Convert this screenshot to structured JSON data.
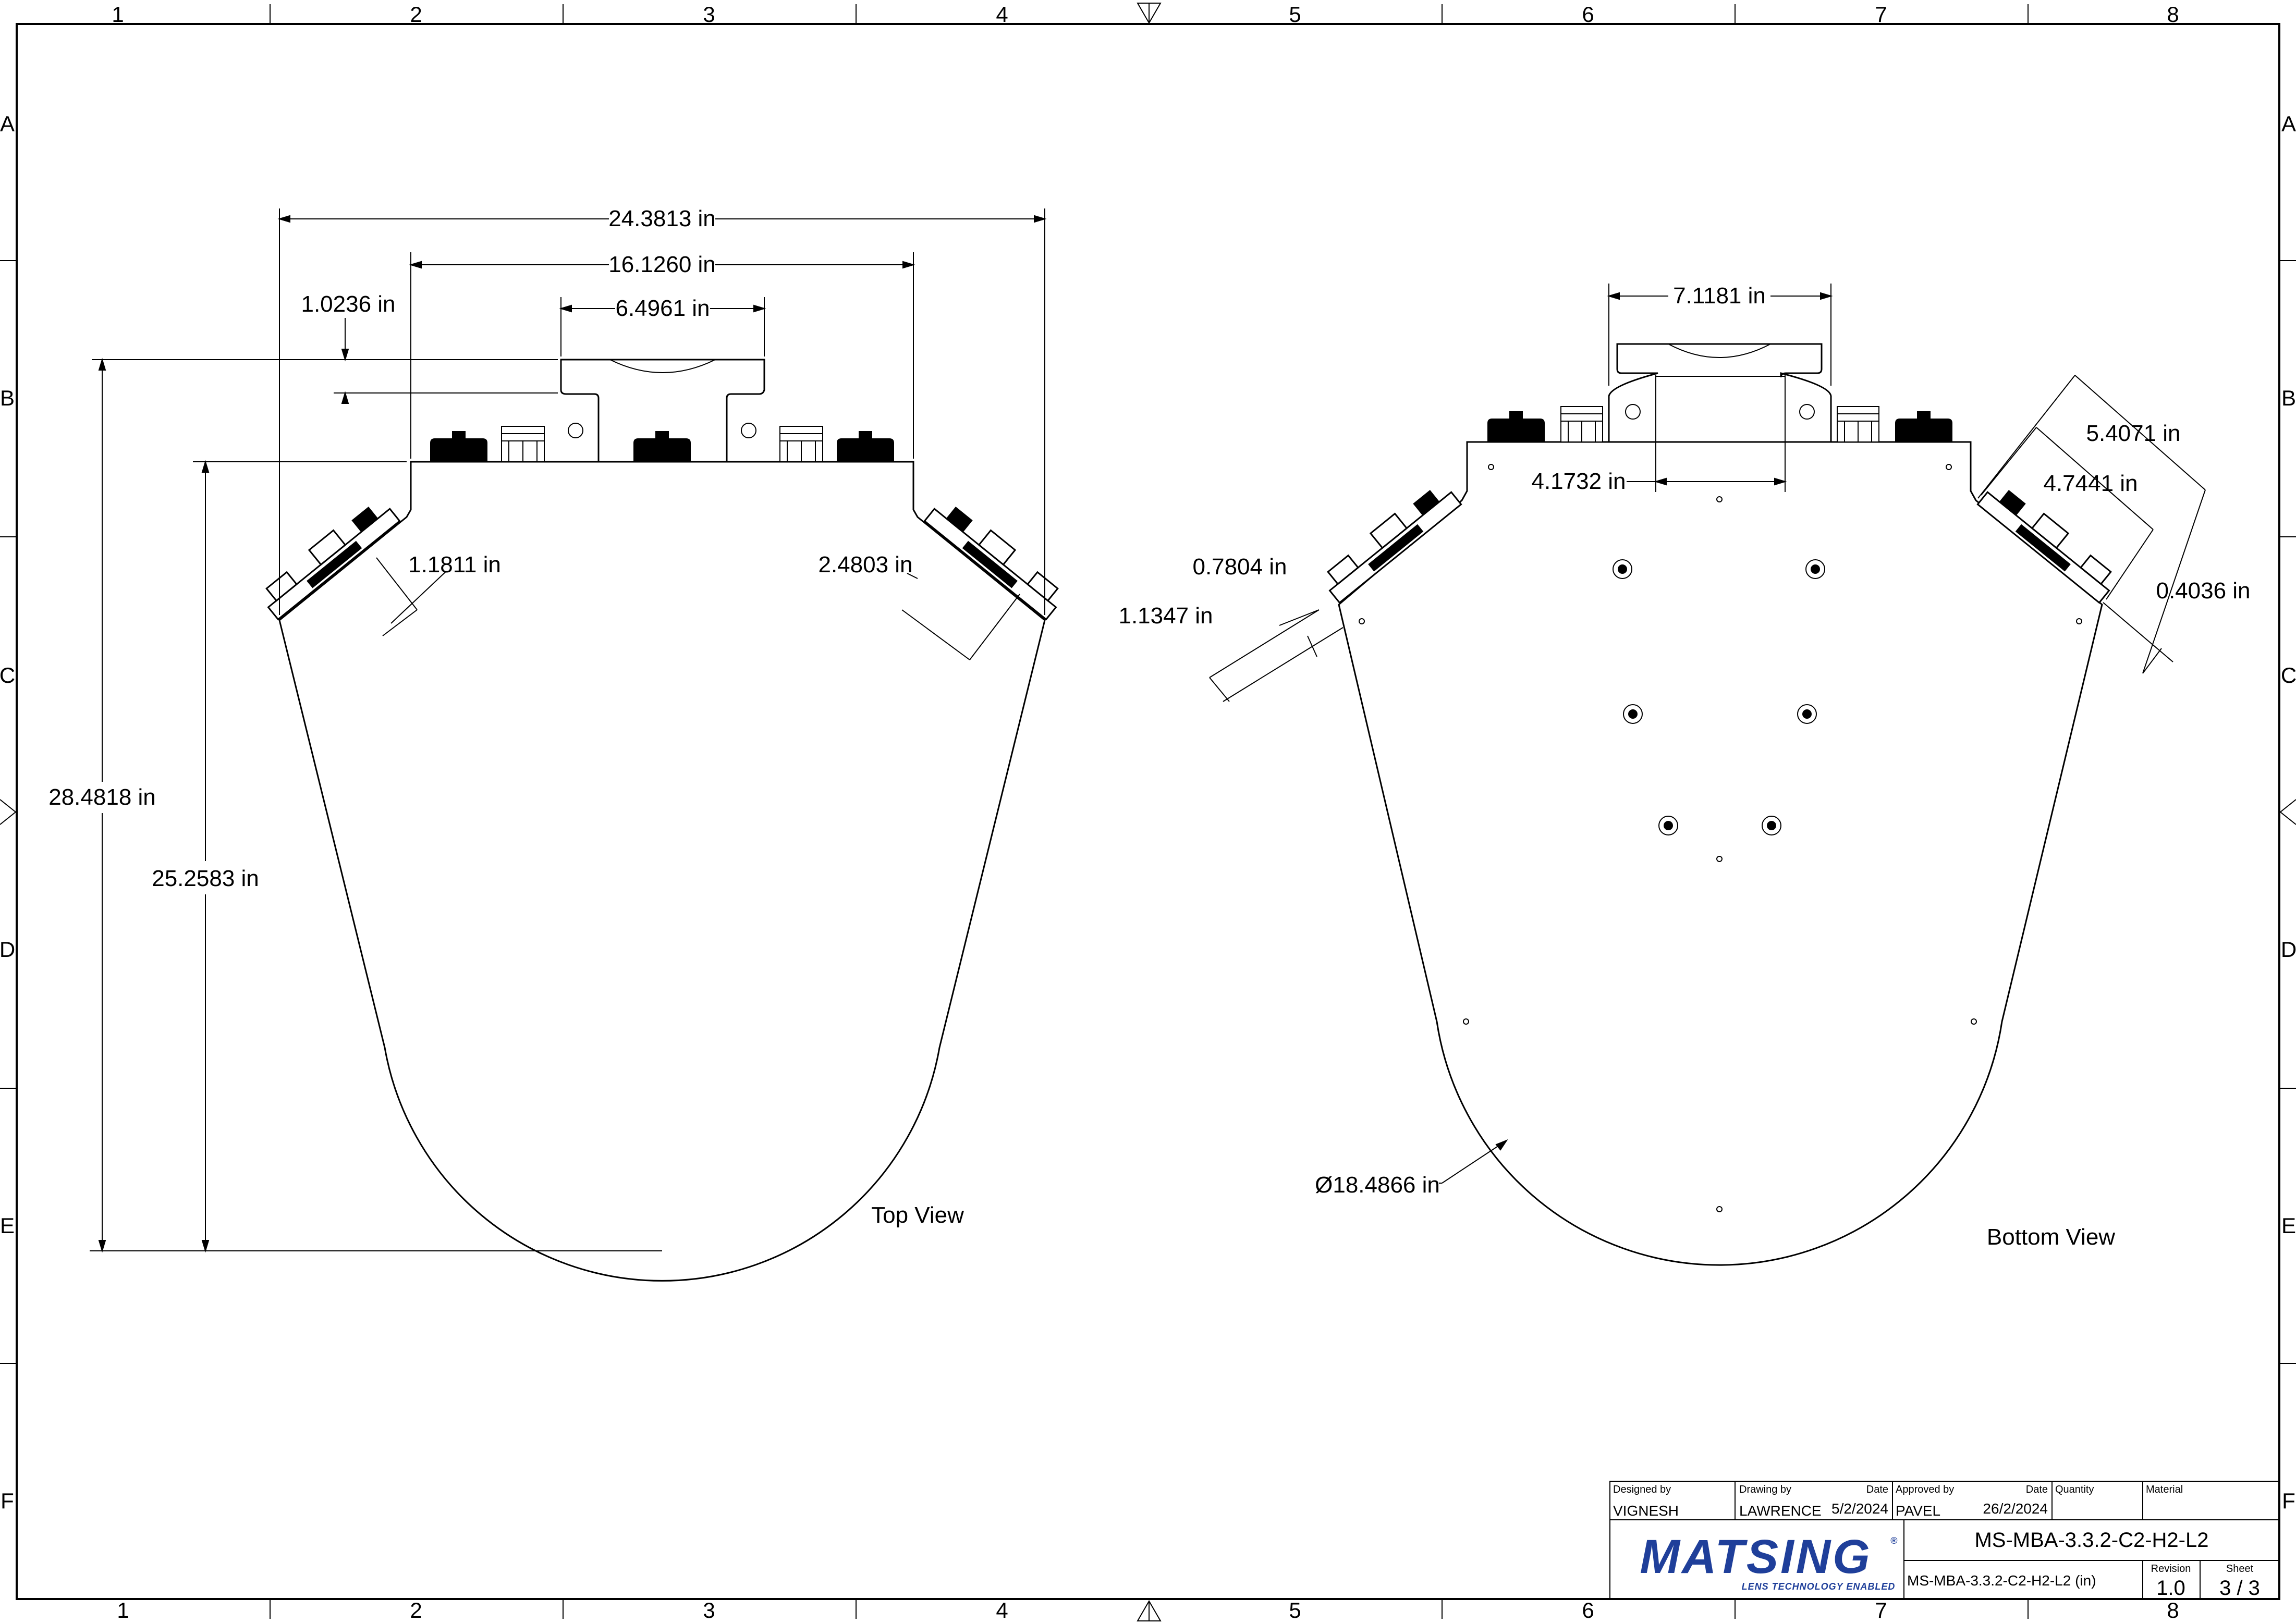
{
  "zones": {
    "columns": [
      "1",
      "2",
      "3",
      "4",
      "5",
      "6",
      "7",
      "8"
    ],
    "rows": [
      "A",
      "B",
      "C",
      "D",
      "E",
      "F"
    ]
  },
  "top_view": {
    "label": "Top View",
    "dims": {
      "overall_width": "24.3813 in",
      "inner_width": "16.1260 in",
      "handle_width": "6.4961 in",
      "handle_height": "1.0236 in",
      "side_offset": "1.1811 in",
      "side_depth": "2.4803 in",
      "overall_height": "28.4818 in",
      "body_height": "25.2583 in"
    }
  },
  "bottom_view": {
    "label": "Bottom View",
    "dims": {
      "handle_width": "7.1181 in",
      "plate_width": "4.1732 in",
      "side_a": "5.4071 in",
      "side_b": "4.7441 in",
      "side_c": "0.4036 in",
      "left_a": "0.7804 in",
      "left_b": "1.1347 in",
      "diameter": "Ø18.4866 in"
    }
  },
  "title_block": {
    "designed_by_label": "Designed by",
    "designed_by": "VIGNESH",
    "drawing_by_label": "Drawing by",
    "drawing_by": "LAWRENCE",
    "date_label_1": "Date",
    "date_1": "5/2/2024",
    "approved_by_label": "Approved by",
    "approved_by": "PAVEL",
    "date_label_2": "Date",
    "date_2": "26/2/2024",
    "quantity_label": "Quantity",
    "material_label": "Material",
    "part_number": "MS-MBA-3.3.2-C2-H2-L2",
    "part_number_units": "MS-MBA-3.3.2-C2-H2-L2 (in)",
    "revision_label": "Revision",
    "revision": "1.0",
    "sheet_label": "Sheet",
    "sheet": "3 / 3",
    "logo_text": "MATSING",
    "logo_registered": "®",
    "logo_tagline": "LENS TECHNOLOGY ENABLED",
    "logo_color": "#1f3f9a"
  }
}
